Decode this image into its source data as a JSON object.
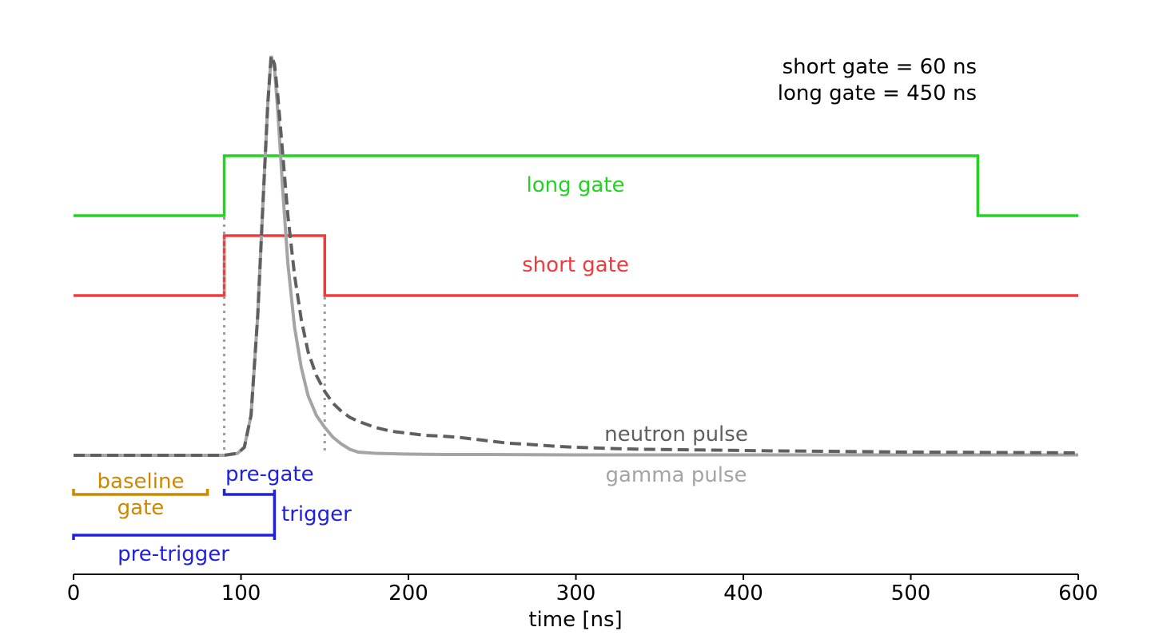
{
  "chart_data": {
    "type": "line",
    "title": "",
    "xlabel": "time [ns]",
    "ylabel": "",
    "xlim": [
      0,
      600
    ],
    "xticks": [
      0,
      100,
      200,
      300,
      400,
      500,
      600
    ],
    "grid": false,
    "annotation_top_right": [
      "short gate = 60 ns",
      "long gate = 450 ns"
    ],
    "gates": [
      {
        "name": "long gate",
        "color": "#22d322",
        "start_ns": 90,
        "end_ns": 540
      },
      {
        "name": "short gate",
        "color": "#ee3c3c",
        "start_ns": 90,
        "end_ns": 150
      }
    ],
    "series": [
      {
        "name": "neutron pulse",
        "color": "#5f5f5f",
        "style": "dashed",
        "x": [
          0,
          80,
          90,
          98,
          102,
          106,
          110,
          113,
          116,
          118,
          120,
          122,
          125,
          128,
          132,
          136,
          140,
          145,
          150,
          155,
          160,
          165,
          170,
          180,
          190,
          200,
          210,
          220,
          230,
          240,
          250,
          260,
          270,
          280,
          290,
          300,
          320,
          340,
          360,
          380,
          400,
          420,
          450,
          500,
          550,
          600
        ],
        "y": [
          0,
          0,
          0,
          0.005,
          0.02,
          0.1,
          0.35,
          0.62,
          0.88,
          1.0,
          0.98,
          0.9,
          0.75,
          0.6,
          0.45,
          0.34,
          0.26,
          0.2,
          0.16,
          0.13,
          0.11,
          0.095,
          0.085,
          0.07,
          0.06,
          0.055,
          0.05,
          0.048,
          0.045,
          0.04,
          0.035,
          0.03,
          0.028,
          0.025,
          0.022,
          0.02,
          0.017,
          0.015,
          0.014,
          0.013,
          0.012,
          0.011,
          0.01,
          0.008,
          0.007,
          0.006
        ]
      },
      {
        "name": "gamma pulse",
        "color": "#a4a4a4",
        "style": "solid",
        "x": [
          0,
          80,
          90,
          98,
          102,
          106,
          110,
          113,
          116,
          118,
          120,
          122,
          125,
          128,
          132,
          136,
          140,
          145,
          150,
          155,
          160,
          165,
          170,
          180,
          190,
          200,
          220,
          250,
          300,
          400,
          500,
          600
        ],
        "y": [
          0,
          0,
          0,
          0.005,
          0.02,
          0.1,
          0.35,
          0.62,
          0.88,
          1.0,
          0.97,
          0.86,
          0.66,
          0.48,
          0.32,
          0.22,
          0.15,
          0.1,
          0.07,
          0.045,
          0.028,
          0.015,
          0.008,
          0.005,
          0.004,
          0.003,
          0.002,
          0.002,
          0.001,
          0.001,
          0.001,
          0.001
        ]
      }
    ],
    "brackets": [
      {
        "label": "baseline\ngate",
        "color": "#cc8800",
        "start_ns": 0,
        "end_ns": 80
      },
      {
        "label": "pre-gate",
        "color": "#2020dd",
        "start_ns": 90,
        "end_ns": 120
      },
      {
        "label": "trigger",
        "color": "#2020dd",
        "at_ns": 120
      },
      {
        "label": "pre-trigger",
        "color": "#2020dd",
        "start_ns": 0,
        "end_ns": 120
      }
    ]
  }
}
